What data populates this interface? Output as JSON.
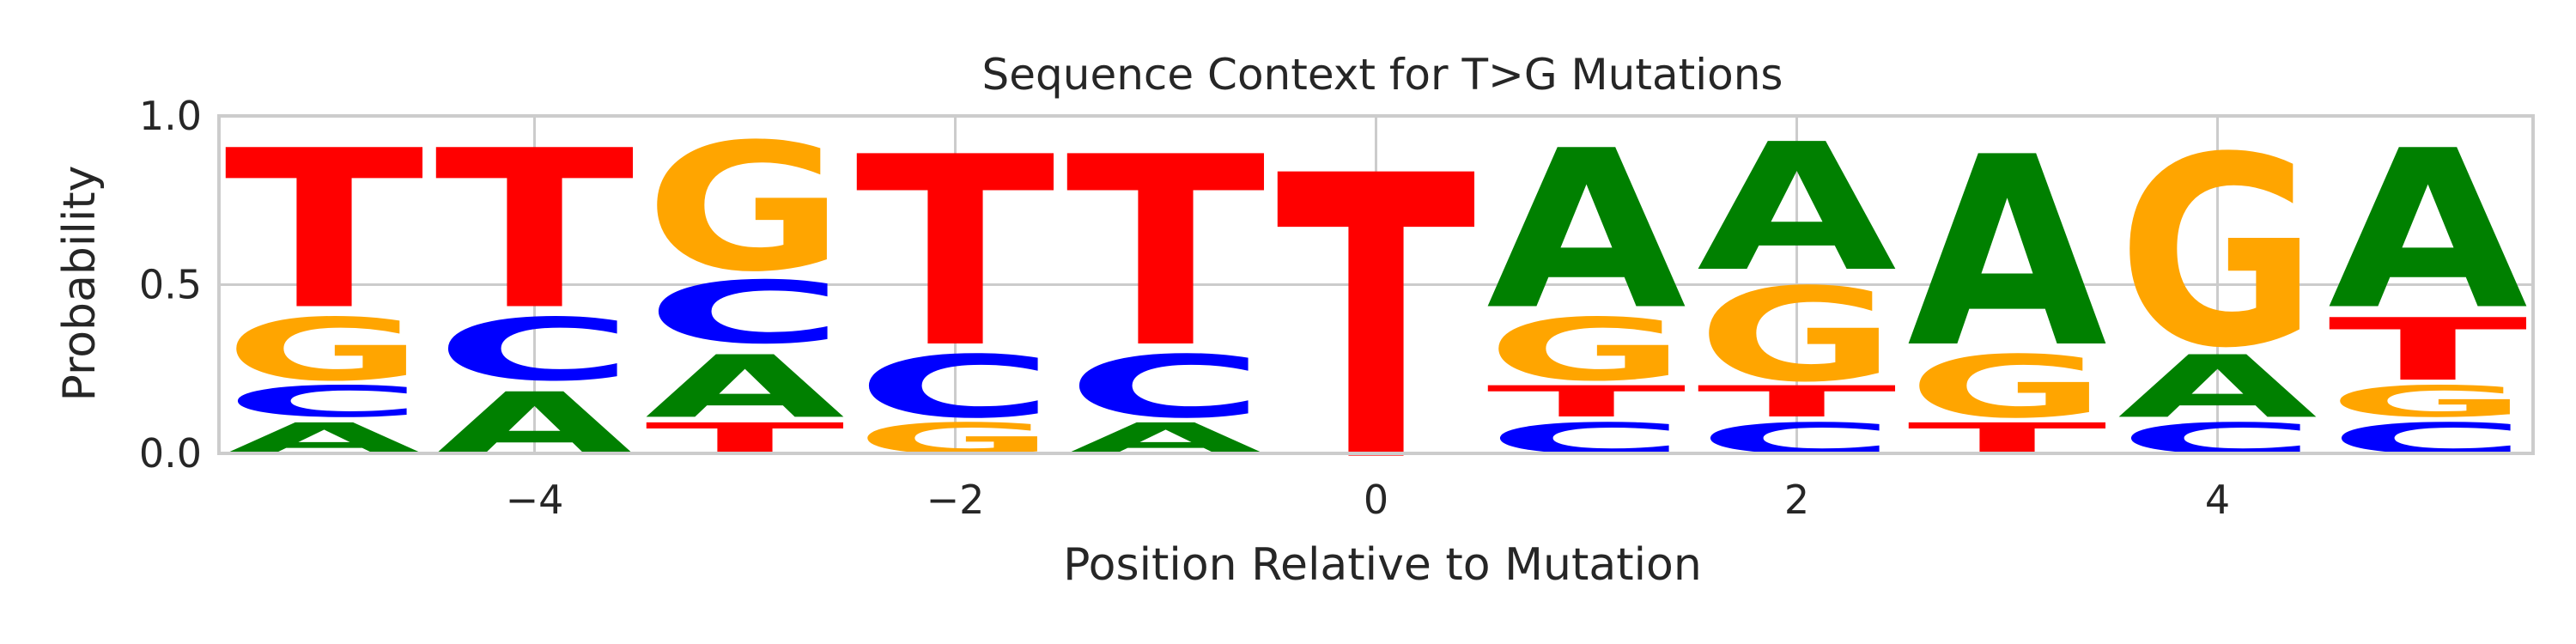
{
  "chart_data": {
    "type": "sequence-logo",
    "title": "Sequence Context for T>G Mutations",
    "xlabel": "Position Relative to Mutation",
    "ylabel": "Probability",
    "xlim": [
      -5.5,
      5.5
    ],
    "ylim": [
      0,
      1
    ],
    "xticks": [
      -4,
      -2,
      0,
      2,
      4
    ],
    "xtick_labels": [
      "−4",
      "−2",
      "0",
      "2",
      "4"
    ],
    "yticks": [
      0,
      0.5,
      1
    ],
    "ytick_labels": [
      "0.0",
      "0.5",
      "1.0"
    ],
    "grid": true,
    "colors": {
      "A": "#008000",
      "C": "#0000ff",
      "G": "#ffa500",
      "T": "#ff0000"
    },
    "positions": [
      {
        "x": -5,
        "stack": [
          {
            "base": "A",
            "p": 0.11
          },
          {
            "base": "C",
            "p": 0.11
          },
          {
            "base": "G",
            "p": 0.22
          },
          {
            "base": "T",
            "p": 0.56
          }
        ]
      },
      {
        "x": -4,
        "stack": [
          {
            "base": "A",
            "p": 0.22
          },
          {
            "base": "C",
            "p": 0.22
          },
          {
            "base": "T",
            "p": 0.56
          }
        ]
      },
      {
        "x": -3,
        "stack": [
          {
            "base": "T",
            "p": 0.11
          },
          {
            "base": "A",
            "p": 0.22
          },
          {
            "base": "C",
            "p": 0.22
          },
          {
            "base": "G",
            "p": 0.45
          }
        ]
      },
      {
        "x": -2,
        "stack": [
          {
            "base": "G",
            "p": 0.11
          },
          {
            "base": "C",
            "p": 0.22
          },
          {
            "base": "T",
            "p": 0.67
          }
        ]
      },
      {
        "x": -1,
        "stack": [
          {
            "base": "A",
            "p": 0.11
          },
          {
            "base": "C",
            "p": 0.22
          },
          {
            "base": "T",
            "p": 0.67
          }
        ]
      },
      {
        "x": 0,
        "stack": [
          {
            "base": "T",
            "p": 1.0
          }
        ]
      },
      {
        "x": 1,
        "stack": [
          {
            "base": "C",
            "p": 0.11
          },
          {
            "base": "T",
            "p": 0.11
          },
          {
            "base": "G",
            "p": 0.22
          },
          {
            "base": "A",
            "p": 0.56
          }
        ]
      },
      {
        "x": 2,
        "stack": [
          {
            "base": "C",
            "p": 0.11
          },
          {
            "base": "T",
            "p": 0.11
          },
          {
            "base": "G",
            "p": 0.33
          },
          {
            "base": "A",
            "p": 0.45
          }
        ]
      },
      {
        "x": 3,
        "stack": [
          {
            "base": "T",
            "p": 0.11
          },
          {
            "base": "G",
            "p": 0.22
          },
          {
            "base": "A",
            "p": 0.67
          }
        ]
      },
      {
        "x": 4,
        "stack": [
          {
            "base": "C",
            "p": 0.11
          },
          {
            "base": "A",
            "p": 0.22
          },
          {
            "base": "G",
            "p": 0.67
          }
        ]
      },
      {
        "x": 5,
        "stack": [
          {
            "base": "C",
            "p": 0.11
          },
          {
            "base": "G",
            "p": 0.11
          },
          {
            "base": "T",
            "p": 0.22
          },
          {
            "base": "A",
            "p": 0.56
          }
        ]
      }
    ]
  }
}
